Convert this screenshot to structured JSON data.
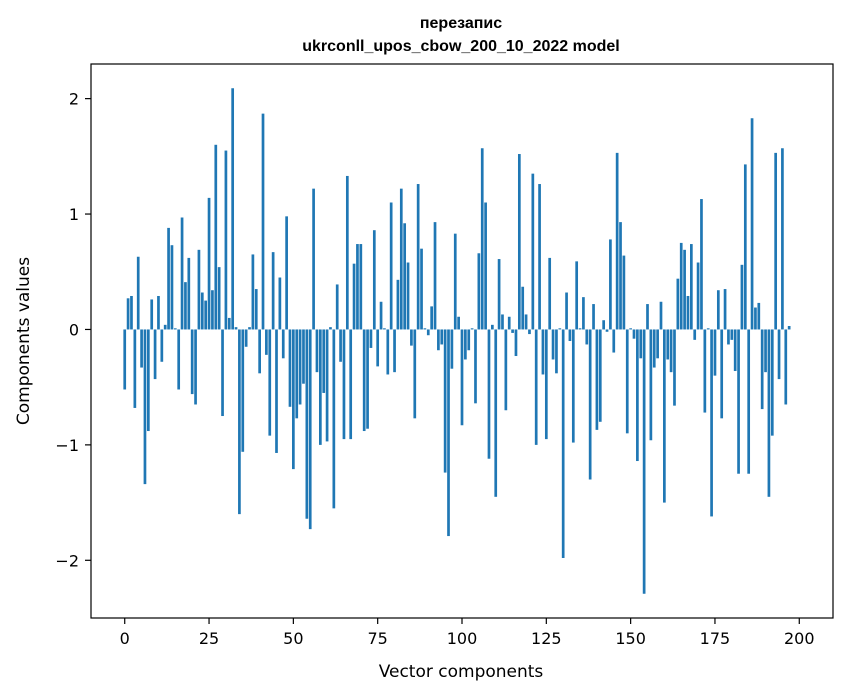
{
  "chart_data": {
    "type": "bar",
    "title_line1": "перезапис",
    "title_line2": "ukrconll_upos_cbow_200_10_2022 model",
    "xlabel": "Vector components",
    "ylabel": "Components values",
    "xlim": [
      -10,
      210
    ],
    "ylim": [
      -2.5,
      2.3
    ],
    "xticks": [
      0,
      25,
      50,
      75,
      100,
      125,
      150,
      175,
      200
    ],
    "xtick_labels": [
      "0",
      "25",
      "50",
      "75",
      "100",
      "125",
      "150",
      "175",
      "200"
    ],
    "yticks": [
      -2,
      -1,
      0,
      1,
      2
    ],
    "ytick_labels": [
      "−2",
      "−1",
      "0",
      "1",
      "2"
    ],
    "color": "#1f77b4",
    "values": [
      -0.52,
      0.27,
      0.29,
      -0.68,
      0.63,
      -0.33,
      -1.34,
      -0.88,
      0.26,
      -0.43,
      0.29,
      -0.28,
      0.04,
      0.88,
      0.73,
      0.01,
      -0.52,
      0.97,
      0.41,
      0.62,
      -0.56,
      -0.65,
      0.69,
      0.32,
      0.25,
      1.14,
      0.34,
      1.6,
      0.54,
      -0.75,
      1.55,
      0.1,
      2.09,
      0.02,
      -1.6,
      -1.06,
      -0.15,
      0.02,
      0.65,
      0.35,
      -0.38,
      1.87,
      -0.22,
      -0.92,
      0.67,
      -1.07,
      0.45,
      -0.25,
      0.98,
      -0.67,
      -1.21,
      -0.77,
      -0.65,
      -0.47,
      -1.64,
      -1.73,
      1.22,
      -0.37,
      -1.0,
      -0.55,
      -0.97,
      0.02,
      -1.55,
      0.39,
      -0.28,
      -0.95,
      1.33,
      -0.95,
      0.57,
      0.74,
      0.74,
      -0.88,
      -0.86,
      -0.16,
      0.86,
      -0.32,
      0.24,
      0.01,
      -0.39,
      1.1,
      -0.37,
      0.43,
      1.22,
      0.92,
      0.58,
      -0.14,
      -0.77,
      1.26,
      0.7,
      0.01,
      -0.05,
      0.2,
      0.93,
      -0.18,
      -0.13,
      -1.24,
      -1.79,
      -0.34,
      0.83,
      0.11,
      -0.83,
      -0.26,
      -0.18,
      0.01,
      -0.64,
      0.66,
      1.57,
      1.1,
      -1.12,
      0.04,
      -1.45,
      0.61,
      0.13,
      -0.7,
      0.11,
      -0.03,
      -0.23,
      1.52,
      0.37,
      0.13,
      -0.04,
      1.35,
      -1.0,
      1.26,
      -0.39,
      -0.95,
      0.62,
      -0.26,
      -0.38,
      0.01,
      -1.98,
      0.32,
      -0.1,
      -0.98,
      0.59,
      0.01,
      0.28,
      -0.13,
      -1.3,
      0.22,
      -0.87,
      -0.8,
      0.08,
      -0.02,
      0.78,
      -0.2,
      1.53,
      0.93,
      0.64,
      -0.9,
      0.01,
      -0.08,
      -1.14,
      -0.25,
      -2.29,
      0.22,
      -0.96,
      -0.33,
      -0.25,
      0.24,
      -1.5,
      -0.26,
      -0.37,
      -0.66,
      0.44,
      0.75,
      0.69,
      0.29,
      0.74,
      -0.09,
      0.58,
      1.13,
      -0.72,
      0.01,
      -1.62,
      -0.4,
      0.34,
      -0.77,
      0.35,
      -0.13,
      -0.09,
      -0.36,
      -1.25,
      0.56,
      1.43,
      -1.25,
      1.83,
      0.19,
      0.23,
      -0.69,
      -0.37,
      -1.45,
      -0.92,
      1.53,
      -0.43,
      1.57,
      -0.65,
      0.03
    ]
  }
}
